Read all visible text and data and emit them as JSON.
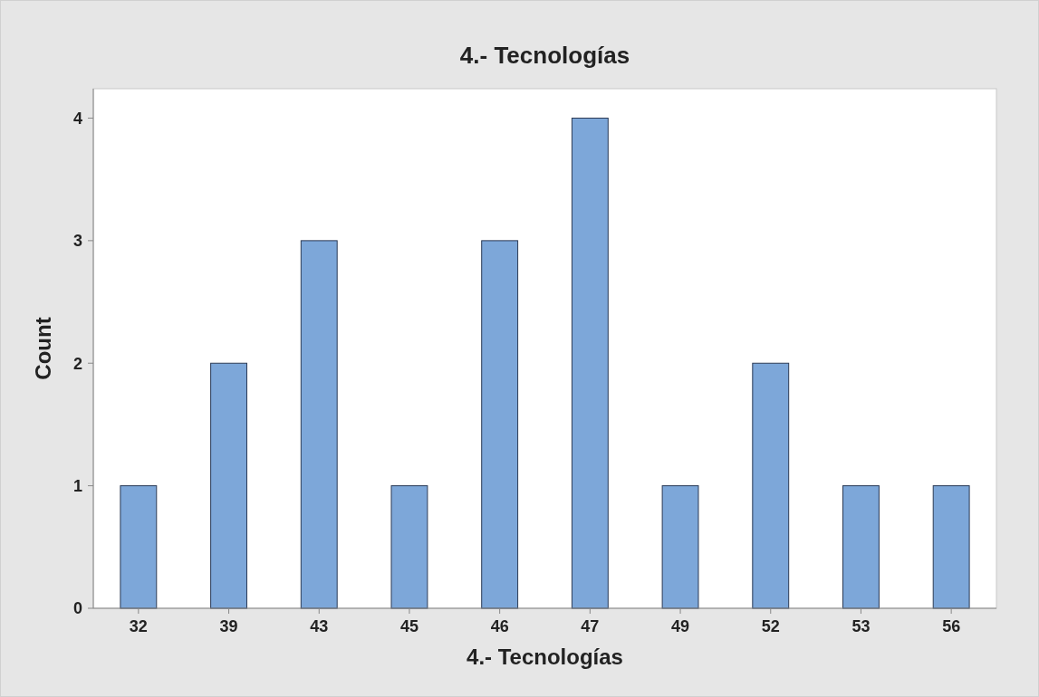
{
  "chart_data": {
    "type": "bar",
    "title": "4.- Tecnologías",
    "xlabel": "4.- Tecnologías",
    "ylabel": "Count",
    "categories": [
      "32",
      "39",
      "43",
      "45",
      "46",
      "47",
      "49",
      "52",
      "53",
      "56"
    ],
    "values": [
      1,
      2,
      3,
      1,
      3,
      4,
      1,
      2,
      1,
      1
    ],
    "color": "#7da7d9",
    "ylim": [
      0,
      4.24
    ],
    "yticks": [
      0,
      1,
      2,
      3,
      4
    ],
    "grid": false
  }
}
